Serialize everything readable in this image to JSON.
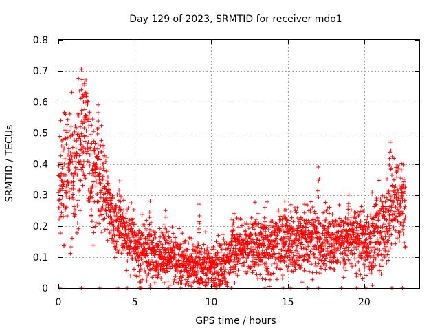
{
  "chart_data": {
    "type": "scatter",
    "title": "Day 129 of 2023, SRMTID for receiver mdo1",
    "xlabel": "GPS time / hours",
    "ylabel": "SRMTID / TECUs",
    "xlim": [
      0,
      23.6
    ],
    "ylim": [
      0,
      0.8
    ],
    "xticks": [
      0,
      5,
      10,
      15,
      20
    ],
    "xtick_labels": [
      "0",
      "5",
      "10",
      "15",
      "20"
    ],
    "yticks": [
      0,
      0.1,
      0.2,
      0.3,
      0.4,
      0.5,
      0.6,
      0.7,
      0.8
    ],
    "ytick_labels": [
      "0",
      "0.1",
      "0.2",
      "0.3",
      "0.4",
      "0.5",
      "0.6",
      "0.7",
      "0.8"
    ],
    "grid": true,
    "marker": "+",
    "color": "#ff0000",
    "trend": [
      [
        0.0,
        0.33
      ],
      [
        0.5,
        0.38
      ],
      [
        1.0,
        0.36
      ],
      [
        1.5,
        0.48
      ],
      [
        1.8,
        0.52
      ],
      [
        2.2,
        0.34
      ],
      [
        2.8,
        0.36
      ],
      [
        3.2,
        0.3
      ],
      [
        3.6,
        0.2
      ],
      [
        4.2,
        0.19
      ],
      [
        4.8,
        0.14
      ],
      [
        5.5,
        0.12
      ],
      [
        6.5,
        0.1
      ],
      [
        7.5,
        0.1
      ],
      [
        8.3,
        0.08
      ],
      [
        9.0,
        0.075
      ],
      [
        9.8,
        0.075
      ],
      [
        10.5,
        0.065
      ],
      [
        11.0,
        0.09
      ],
      [
        11.5,
        0.13
      ],
      [
        12.5,
        0.13
      ],
      [
        13.5,
        0.13
      ],
      [
        14.5,
        0.14
      ],
      [
        15.5,
        0.15
      ],
      [
        16.5,
        0.16
      ],
      [
        17.5,
        0.16
      ],
      [
        18.5,
        0.15
      ],
      [
        19.5,
        0.16
      ],
      [
        20.5,
        0.15
      ],
      [
        21.2,
        0.2
      ],
      [
        21.8,
        0.26
      ],
      [
        22.3,
        0.27
      ],
      [
        22.7,
        0.26
      ]
    ],
    "spread": [
      [
        0.0,
        0.09
      ],
      [
        1.0,
        0.1
      ],
      [
        2.0,
        0.09
      ],
      [
        3.0,
        0.07
      ],
      [
        3.8,
        0.05
      ],
      [
        5.0,
        0.045
      ],
      [
        8.0,
        0.04
      ],
      [
        11.0,
        0.045
      ],
      [
        15.0,
        0.05
      ],
      [
        18.0,
        0.05
      ],
      [
        20.0,
        0.05
      ],
      [
        22.0,
        0.07
      ],
      [
        22.7,
        0.06
      ]
    ],
    "peaks": [
      [
        1.5,
        0.705
      ],
      [
        1.7,
        0.66
      ],
      [
        2.6,
        0.59
      ],
      [
        4.0,
        0.345
      ],
      [
        6.0,
        0.28
      ],
      [
        7.0,
        0.25
      ],
      [
        9.2,
        0.27
      ],
      [
        11.5,
        0.24
      ],
      [
        13.5,
        0.26
      ],
      [
        14.8,
        0.28
      ],
      [
        16.1,
        0.27
      ],
      [
        17.0,
        0.39
      ],
      [
        19.0,
        0.3
      ],
      [
        20.8,
        0.29
      ],
      [
        21.7,
        0.47
      ]
    ],
    "troughs": [
      [
        5.3,
        0.02
      ],
      [
        19.9,
        0.03
      ]
    ],
    "zero_hours": [
      0.1,
      1.5,
      2.7,
      3.9,
      4.5,
      5.3,
      5.35,
      5.4,
      6.0,
      7.2,
      8.0,
      9.2,
      10.3,
      11.3,
      13.5,
      14.7,
      15.2,
      16.3,
      17.0,
      18.5,
      19.5,
      20.1,
      21.8,
      22.5
    ],
    "sample_step_hours": 0.0083
  }
}
